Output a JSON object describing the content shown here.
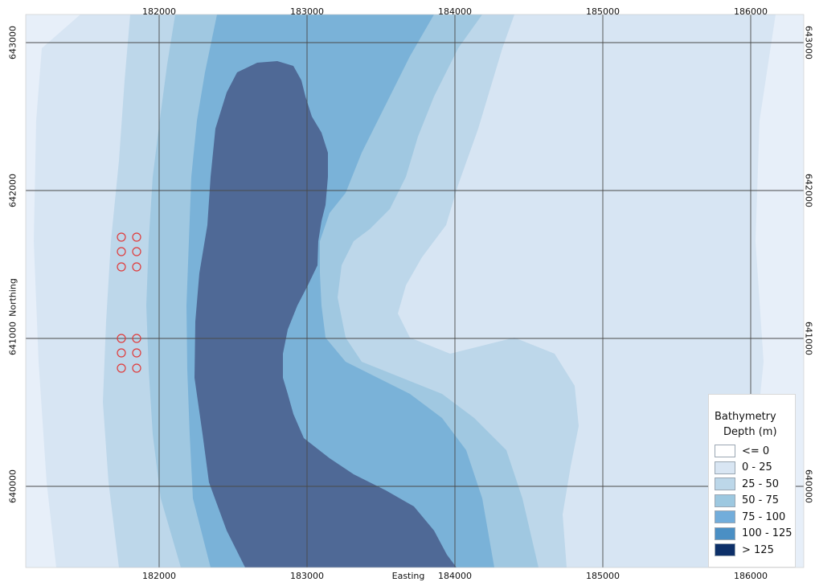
{
  "map": {
    "x_axis": {
      "label": "Easting",
      "ticks": [
        "182000",
        "183000",
        "184000",
        "185000",
        "186000"
      ]
    },
    "y_axis": {
      "label": "Northing",
      "ticks": [
        "643000",
        "642000",
        "641000",
        "640000"
      ]
    },
    "legend": {
      "title": "Bathymetry",
      "subtitle": "Depth (m)",
      "classes": [
        {
          "label": "<= 0",
          "color": "#ffffff"
        },
        {
          "label": "0 - 25",
          "color": "#d9e6f3"
        },
        {
          "label": "25 - 50",
          "color": "#bcd7e9"
        },
        {
          "label": "50 - 75",
          "color": "#9dc8e0"
        },
        {
          "label": "75 - 100",
          "color": "#72addb"
        },
        {
          "label": "100 - 125",
          "color": "#4a8fc4"
        },
        {
          "label": "> 125",
          "color": "#0d3069"
        }
      ]
    },
    "colors": {
      "outer": "#e7eff9",
      "band_0_25": "#d7e5f3",
      "band_25_50": "#bdd7ea",
      "band_50_75": "#a0c8e1",
      "band_75_100": "#7ab2d8",
      "deep": "#4f6996",
      "grid": "#4a4a4a",
      "marker": "#e03a3a"
    },
    "markers": {
      "symbol": "circle",
      "count": 12
    }
  }
}
